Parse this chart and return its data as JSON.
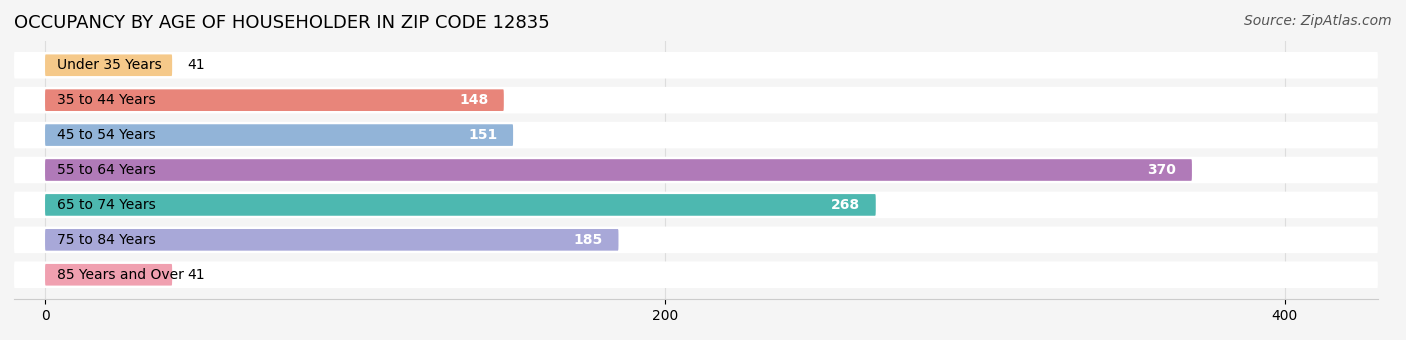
{
  "title": "OCCUPANCY BY AGE OF HOUSEHOLDER IN ZIP CODE 12835",
  "source": "Source: ZipAtlas.com",
  "categories": [
    "Under 35 Years",
    "35 to 44 Years",
    "45 to 54 Years",
    "55 to 64 Years",
    "65 to 74 Years",
    "75 to 84 Years",
    "85 Years and Over"
  ],
  "values": [
    41,
    148,
    151,
    370,
    268,
    185,
    41
  ],
  "bar_colors": [
    "#f5c98a",
    "#e8857a",
    "#92b4d8",
    "#b07ab8",
    "#4db8b0",
    "#a8a8d8",
    "#f0a0b0"
  ],
  "xlim": [
    -10,
    430
  ],
  "background_color": "#f5f5f5",
  "bar_bg_color": "#ffffff",
  "title_fontsize": 13,
  "source_fontsize": 10,
  "label_fontsize": 10,
  "value_fontsize": 10
}
